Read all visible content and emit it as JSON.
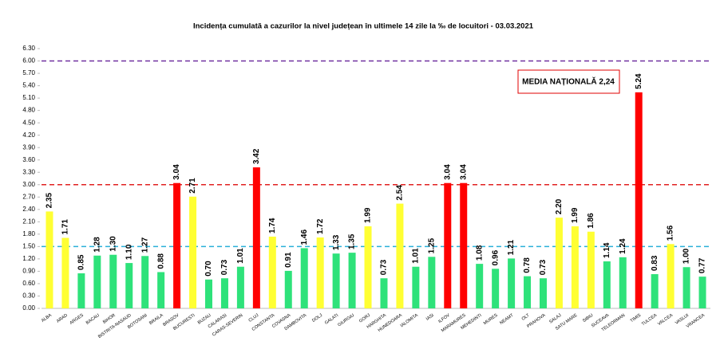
{
  "chart_data": {
    "type": "bar",
    "title": "Incidența cumulată a cazurilor la nivel județean în ultimele 14 zile la ‰ de locuitori - 03.03.2021",
    "categories": [
      "ALBA",
      "ARAD",
      "ARGES",
      "BACAU",
      "BIHOR",
      "BISTRITA-NASAUD",
      "BOTOSANI",
      "BRAILA",
      "BRASOV",
      "BUCURESTI",
      "BUZAU",
      "CALARASI",
      "CARAS-SEVERIN",
      "CLUJ",
      "CONSTANTA",
      "COVASNA",
      "DAMBOVITA",
      "DOLJ",
      "GALATI",
      "GIURGIU",
      "GORJ",
      "HARGHITA",
      "HUNEDOARA",
      "IALOMITA",
      "IASI",
      "ILFOV",
      "MARAMURES",
      "MEHEDINTI",
      "MURES",
      "NEAMT",
      "OLT",
      "PRAHOVA",
      "SALAJ",
      "SATU MARE",
      "SIBIU",
      "SUCEAVA",
      "TELEORMAN",
      "TIMIS",
      "TULCEA",
      "VALCEA",
      "VASLUI",
      "VRANCEA"
    ],
    "values": [
      2.35,
      1.71,
      0.85,
      1.28,
      1.3,
      1.1,
      1.27,
      0.88,
      3.04,
      2.71,
      0.7,
      0.73,
      1.01,
      3.42,
      1.74,
      0.91,
      1.46,
      1.72,
      1.33,
      1.35,
      1.99,
      0.73,
      2.54,
      1.01,
      1.25,
      3.04,
      3.04,
      1.08,
      0.96,
      1.21,
      0.78,
      0.73,
      2.2,
      1.99,
      1.86,
      1.14,
      1.24,
      5.24,
      0.83,
      1.56,
      1.0,
      0.77
    ],
    "value_labels": [
      "2.35",
      "1.71",
      "0.85",
      "1.28",
      "1.30",
      "1.10",
      "1.27",
      "0.88",
      "3.04",
      "2.71",
      "0.70",
      "0.73",
      "1.01",
      "3.42",
      "1.74",
      "0.91",
      "1.46",
      "1.72",
      "1.33",
      "1.35",
      "1.99",
      "0.73",
      "2.54",
      "1.01",
      "1.25",
      "3.04",
      "3.04",
      "1.08",
      "0.96",
      "1.21",
      "0.78",
      "0.73",
      "2.20",
      "1.99",
      "1.86",
      "1.14",
      "1.24",
      "5.24",
      "0.83",
      "1.56",
      "1.00",
      "0.77"
    ],
    "colors": [
      "#ffff33",
      "#ffff33",
      "#2ee27a",
      "#2ee27a",
      "#2ee27a",
      "#2ee27a",
      "#2ee27a",
      "#2ee27a",
      "#ff0000",
      "#ffff33",
      "#2ee27a",
      "#2ee27a",
      "#2ee27a",
      "#ff0000",
      "#ffff33",
      "#2ee27a",
      "#2ee27a",
      "#ffff33",
      "#2ee27a",
      "#2ee27a",
      "#ffff33",
      "#2ee27a",
      "#ffff33",
      "#2ee27a",
      "#2ee27a",
      "#ff0000",
      "#ff0000",
      "#2ee27a",
      "#2ee27a",
      "#2ee27a",
      "#2ee27a",
      "#2ee27a",
      "#ffff33",
      "#ffff33",
      "#ffff33",
      "#2ee27a",
      "#2ee27a",
      "#ff0000",
      "#2ee27a",
      "#ffff33",
      "#2ee27a",
      "#2ee27a"
    ],
    "ylim": [
      0,
      6.3
    ],
    "yticks": [
      {
        "value": 0,
        "label": "0.00"
      },
      {
        "value": 0.3,
        "label": "0.30"
      },
      {
        "value": 0.6,
        "label": "0.60"
      },
      {
        "value": 0.9,
        "label": "0.90"
      },
      {
        "value": 1.2,
        "label": "1.20"
      },
      {
        "value": 1.5,
        "label": "1.50"
      },
      {
        "value": 1.8,
        "label": "1.80"
      },
      {
        "value": 2.1,
        "label": "2.10"
      },
      {
        "value": 2.4,
        "label": "2.40"
      },
      {
        "value": 2.7,
        "label": "2.70"
      },
      {
        "value": 3.0,
        "label": "3.00"
      },
      {
        "value": 3.3,
        "label": "3.30"
      },
      {
        "value": 3.6,
        "label": "3.60"
      },
      {
        "value": 3.9,
        "label": "3.90"
      },
      {
        "value": 4.2,
        "label": "4.20"
      },
      {
        "value": 4.5,
        "label": "4.50"
      },
      {
        "value": 4.8,
        "label": "4.80"
      },
      {
        "value": 5.1,
        "label": "5.10"
      },
      {
        "value": 5.4,
        "label": "5.40"
      },
      {
        "value": 5.7,
        "label": "5.70"
      },
      {
        "value": 6.0,
        "label": "6.00"
      },
      {
        "value": 6.3,
        "label": "6.30"
      }
    ],
    "reference_lines": [
      {
        "value": 6,
        "color": "#7030a0"
      },
      {
        "value": 3,
        "color": "#e02020"
      },
      {
        "value": 1.5,
        "color": "#2ab0d8"
      }
    ],
    "annotation": "MEDIA NAȚIONALĂ 2,24"
  }
}
